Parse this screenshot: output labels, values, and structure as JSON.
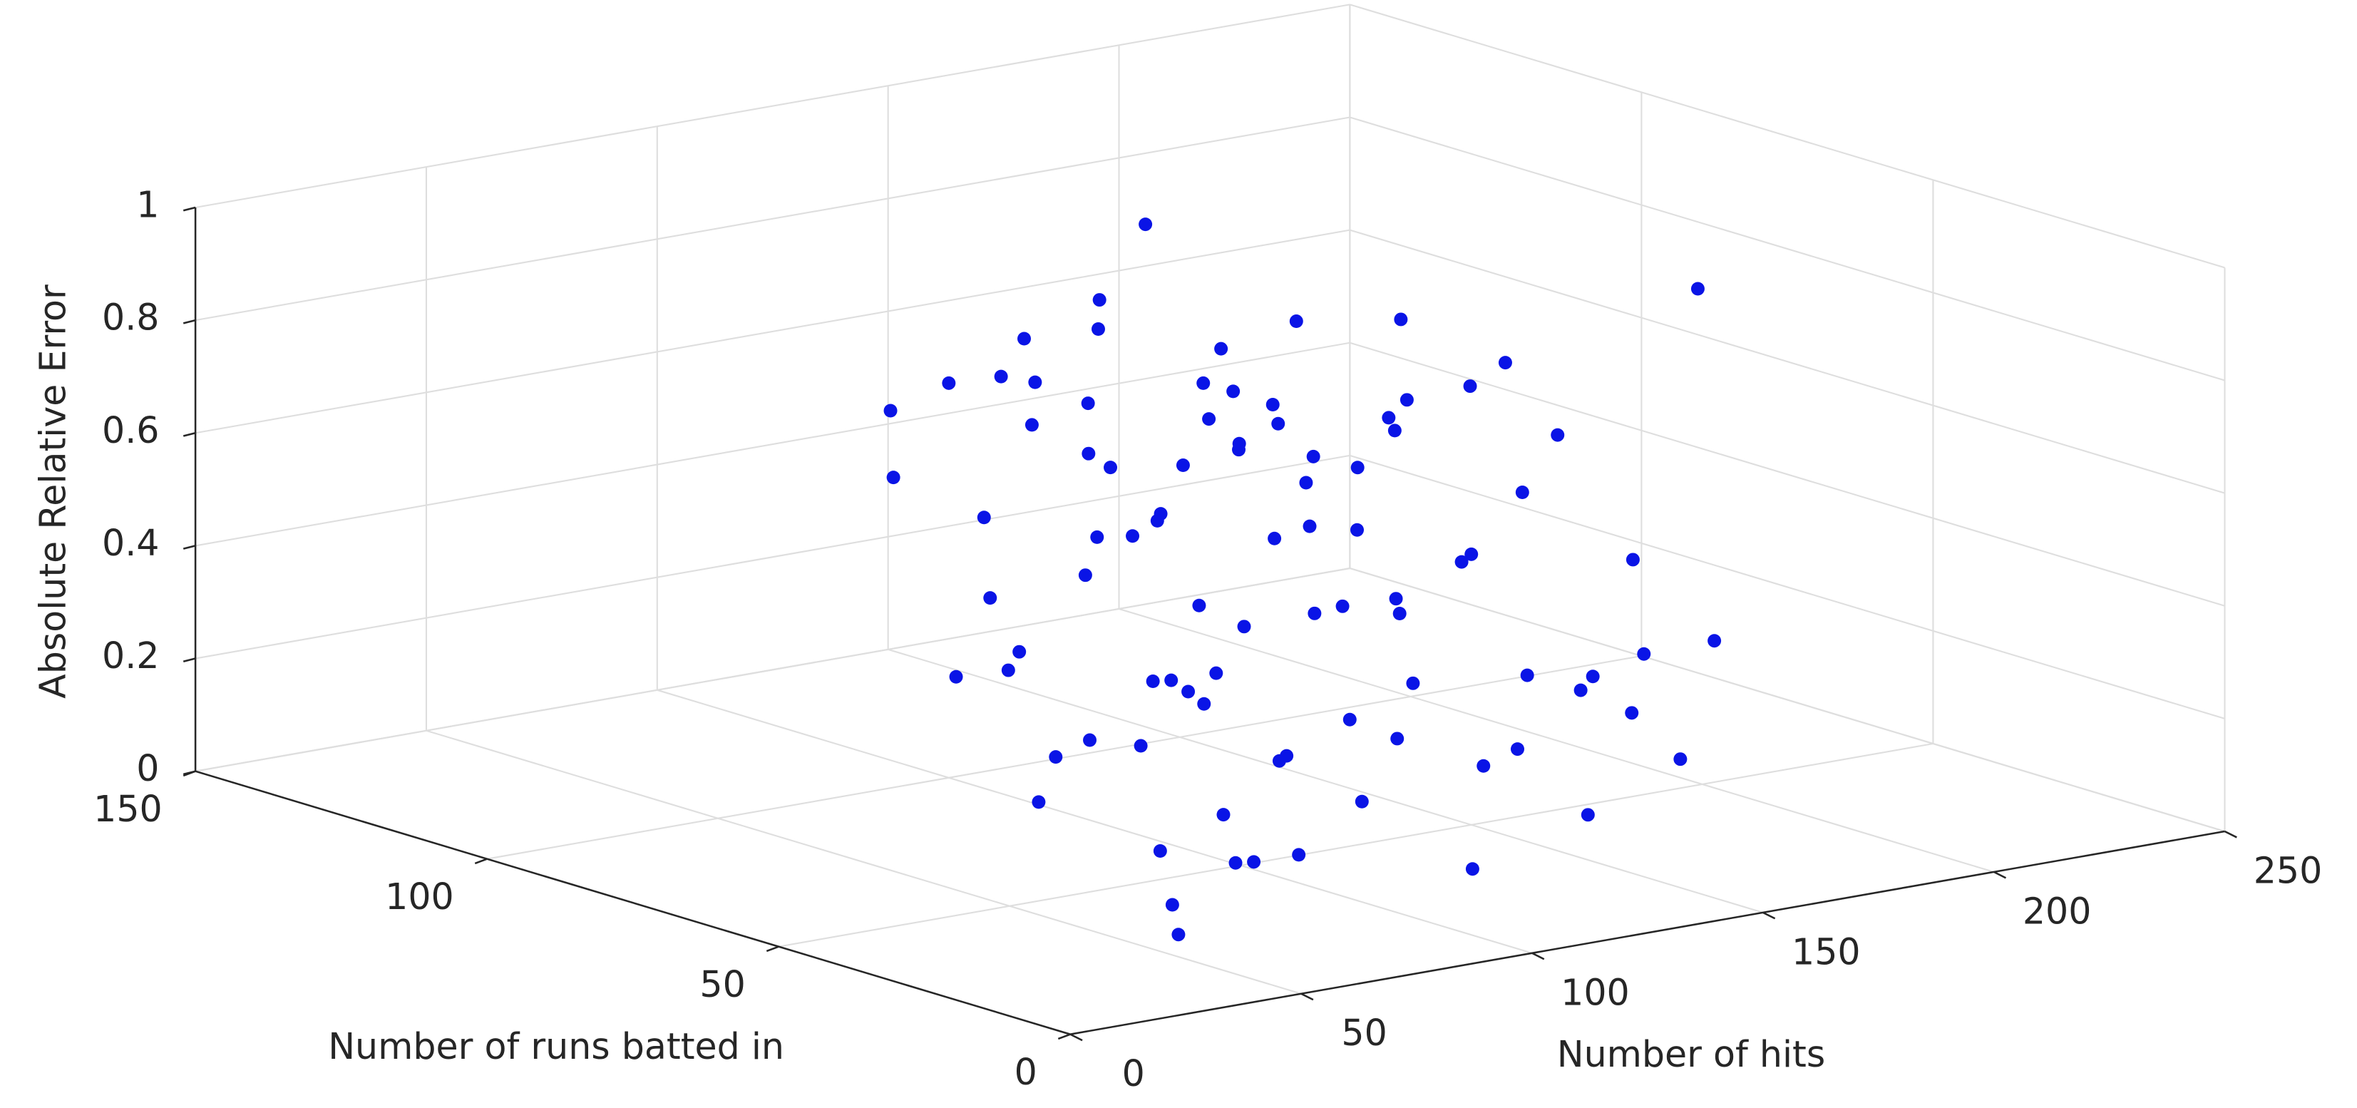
{
  "chart_data": {
    "type": "scatter3d",
    "xlabel": "Number of hits",
    "ylabel": "Number of runs batted in",
    "zlabel": "Absolute Relative Error",
    "xlim": [
      0,
      250
    ],
    "xticks": [
      0,
      50,
      100,
      150,
      200,
      250
    ],
    "ylim": [
      0,
      150
    ],
    "yticks": [
      0,
      50,
      100,
      150
    ],
    "zlim": [
      0,
      1
    ],
    "zticks": [
      0,
      0.2,
      0.4,
      0.6,
      0.8,
      1
    ],
    "grid": true,
    "color": "#0a14e6",
    "x": [
      135,
      194,
      120,
      150,
      110,
      160,
      140,
      100,
      170,
      130,
      115,
      145,
      155,
      125,
      105,
      165,
      138,
      118,
      150,
      128,
      175,
      108,
      142,
      160,
      120,
      95,
      135,
      180,
      112,
      148,
      130,
      98,
      158,
      122,
      185,
      140,
      110,
      90,
      170,
      125,
      145,
      100,
      115,
      135,
      155,
      165,
      105,
      88,
      150,
      175,
      60,
      55,
      70,
      80,
      90,
      65,
      100,
      110,
      120,
      130,
      140,
      150,
      160,
      170,
      180,
      190,
      200,
      120,
      100,
      90,
      80,
      130,
      140,
      110,
      160,
      150,
      170,
      85,
      75,
      95,
      115,
      125,
      135,
      145,
      200,
      210,
      185,
      60,
      70,
      50
    ],
    "y": [
      94,
      46,
      90,
      80,
      95,
      70,
      85,
      100,
      60,
      75,
      88,
      92,
      65,
      70,
      80,
      75,
      60,
      100,
      95,
      82,
      55,
      70,
      72,
      85,
      60,
      90,
      100,
      65,
      78,
      68,
      88,
      75,
      58,
      92,
      50,
      55,
      65,
      85,
      80,
      105,
      110,
      110,
      50,
      78,
      88,
      95,
      95,
      100,
      50,
      70,
      30,
      25,
      40,
      35,
      45,
      20,
      40,
      50,
      45,
      55,
      40,
      60,
      50,
      45,
      55,
      40,
      60,
      70,
      65,
      80,
      60,
      80,
      75,
      75,
      80,
      30,
      30,
      50,
      70,
      55,
      35,
      30,
      65,
      85,
      80,
      70,
      90,
      50,
      75,
      45
    ],
    "z": [
      0.95,
      0.9,
      0.85,
      0.8,
      0.78,
      0.82,
      0.75,
      0.7,
      0.76,
      0.72,
      0.68,
      0.66,
      0.7,
      0.65,
      0.63,
      0.6,
      0.62,
      0.6,
      0.58,
      0.57,
      0.64,
      0.55,
      0.55,
      0.53,
      0.52,
      0.5,
      0.5,
      0.5,
      0.48,
      0.47,
      0.45,
      0.44,
      0.43,
      0.42,
      0.42,
      0.4,
      0.4,
      0.38,
      0.6,
      0.65,
      0.7,
      0.62,
      0.58,
      0.6,
      0.62,
      0.55,
      0.72,
      0.55,
      0.48,
      0.68,
      0.05,
      0.02,
      0.1,
      0.08,
      0.12,
      0.15,
      0.05,
      0.18,
      0.1,
      0.2,
      0.15,
      0.22,
      0.12,
      0.25,
      0.18,
      0.3,
      0.2,
      0.25,
      0.28,
      0.3,
      0.22,
      0.15,
      0.05,
      0.12,
      0.28,
      0.08,
      0.15,
      0.35,
      0.32,
      0.3,
      0.25,
      0.02,
      0.35,
      0.25,
      0.1,
      0.05,
      0.2,
      0.25,
      0.3,
      0.2
    ]
  }
}
